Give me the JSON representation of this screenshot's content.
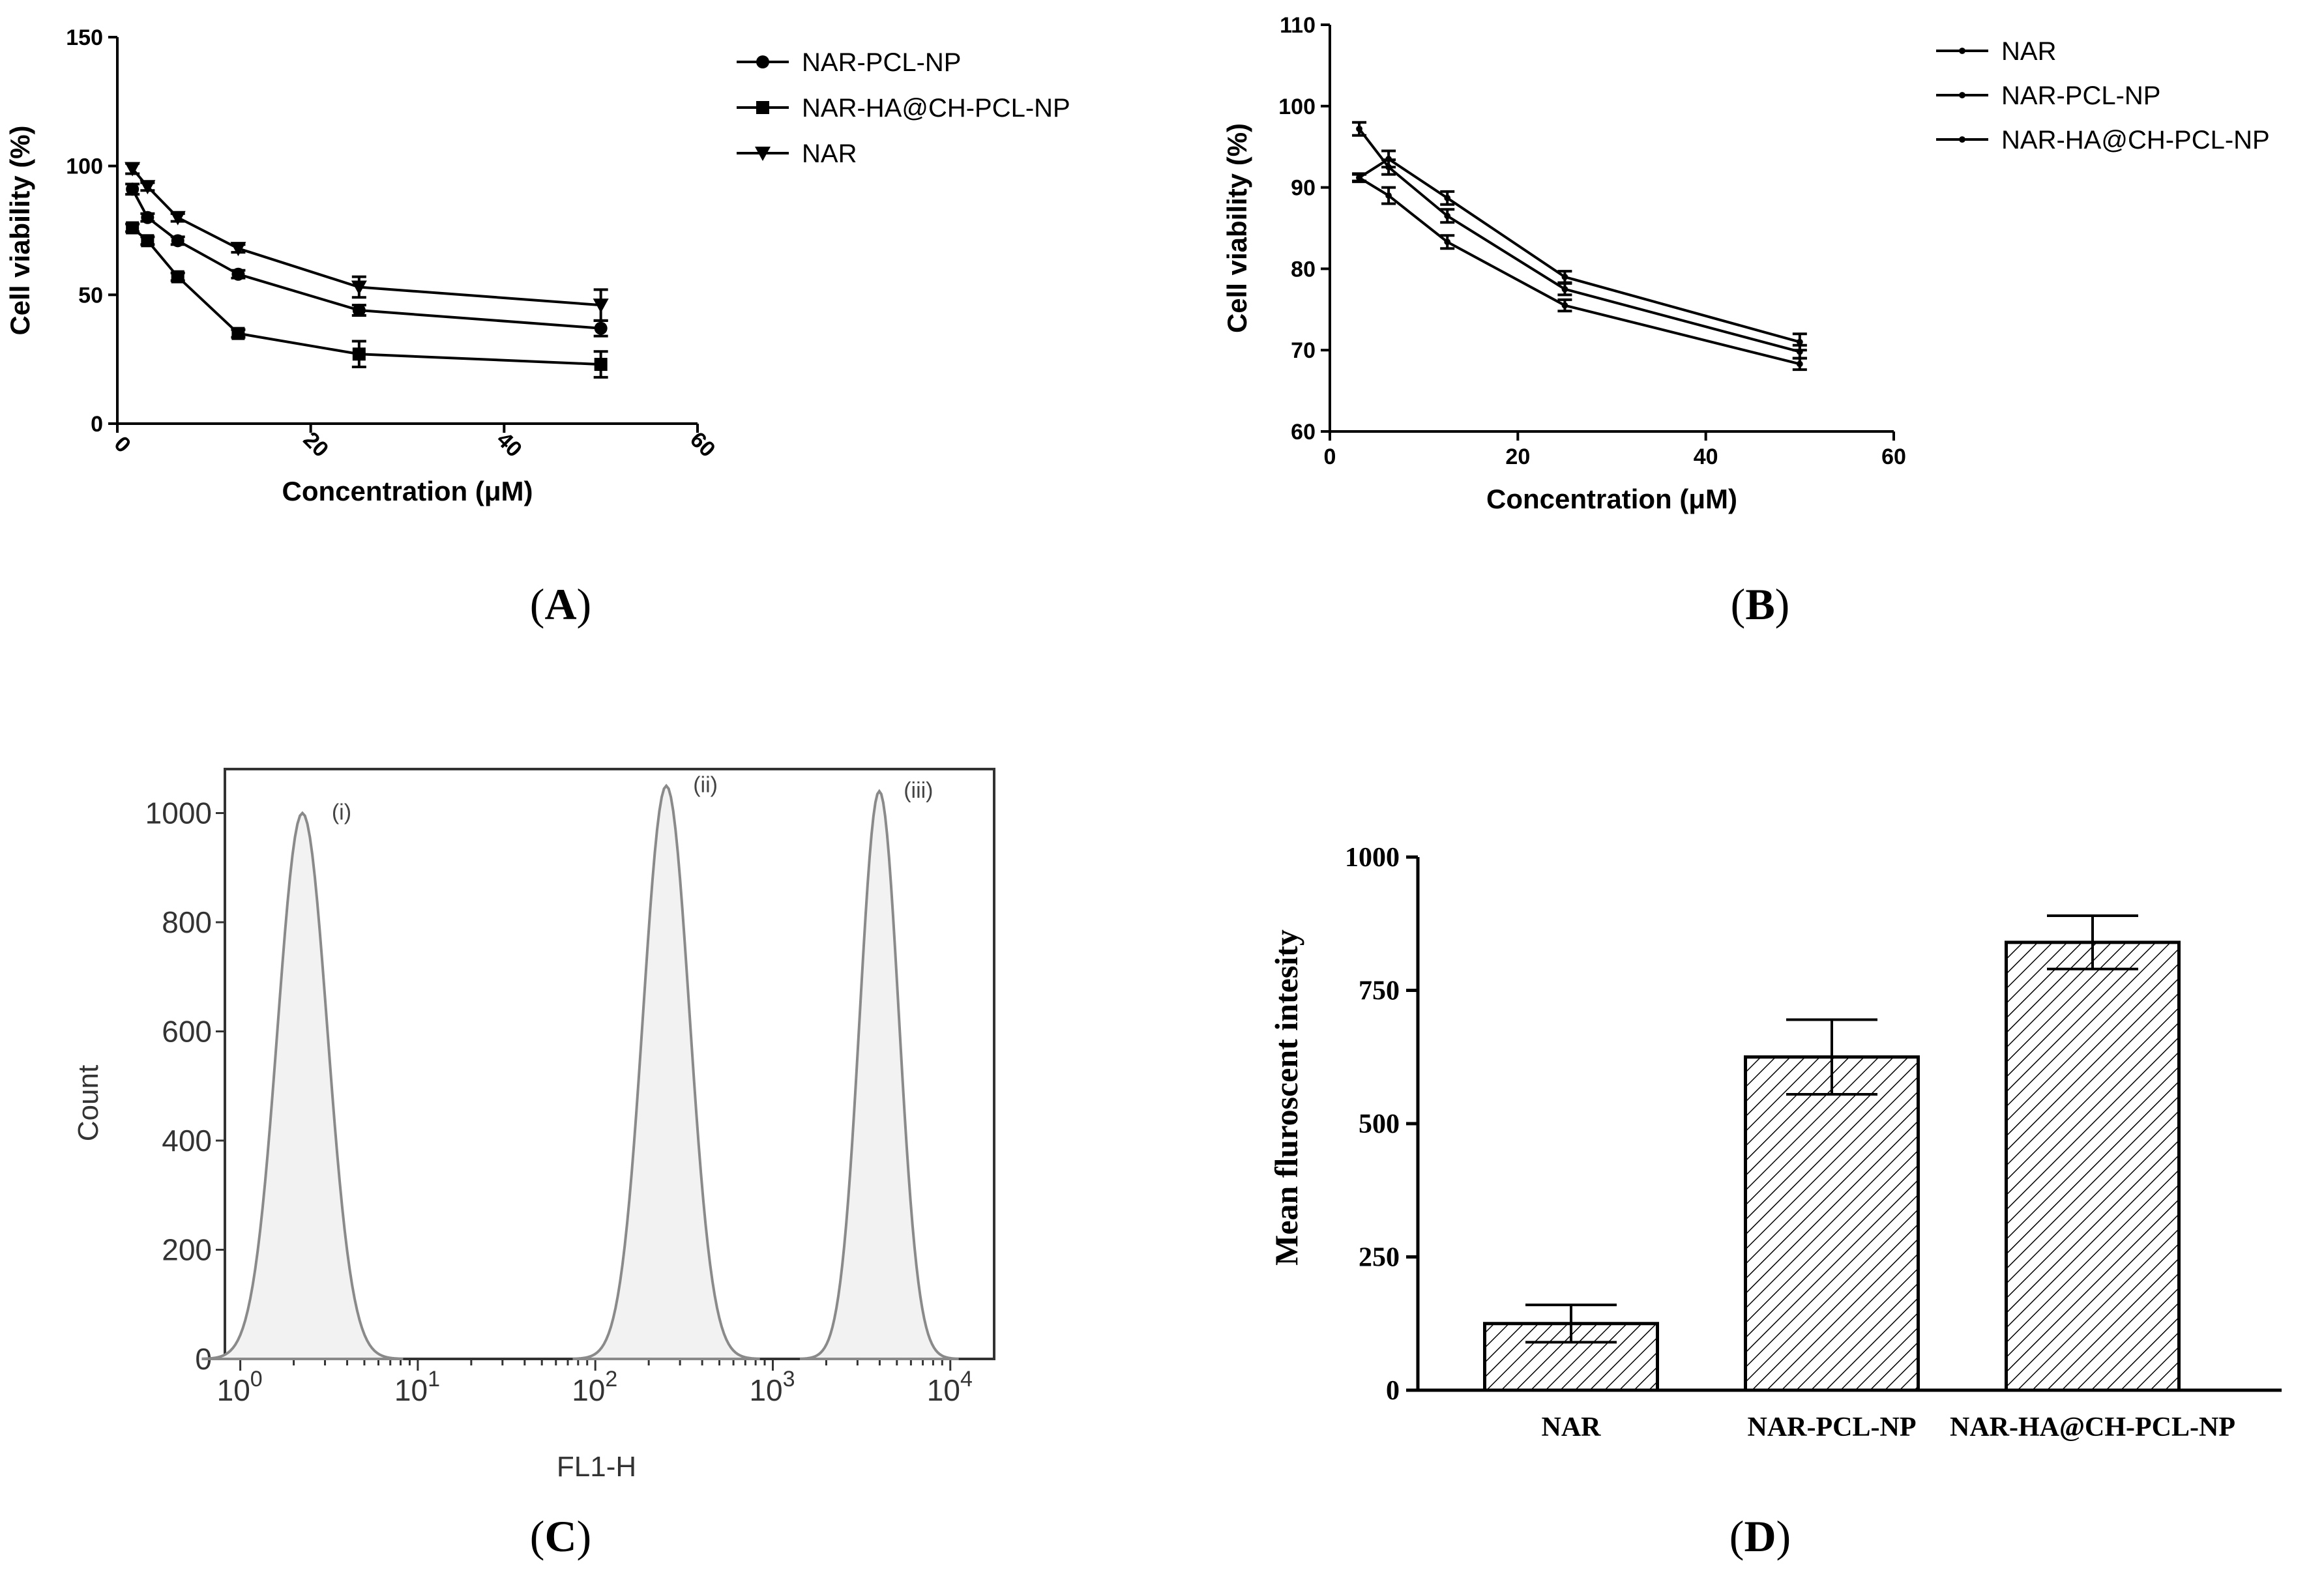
{
  "captions": {
    "a": "A",
    "b": "B",
    "c": "C",
    "d": "D"
  },
  "chart_data": [
    {
      "id": "A",
      "type": "line",
      "xlabel": "Concentration (μM)",
      "ylabel": "Cell viability (%)",
      "xlim": [
        0,
        60
      ],
      "ylim": [
        0,
        150
      ],
      "xticks": [
        0,
        20,
        40,
        60
      ],
      "yticks": [
        0,
        50,
        100,
        150
      ],
      "legend_position": "top-right",
      "series": [
        {
          "name": "NAR-PCL-NP",
          "marker": "circle",
          "x": [
            1.56,
            3.125,
            6.25,
            12.5,
            25,
            50
          ],
          "y": [
            91,
            80,
            71,
            58,
            44,
            37
          ],
          "err": [
            2,
            1.5,
            1.5,
            1.5,
            2,
            3
          ]
        },
        {
          "name": "NAR-HA@CH-PCL-NP",
          "marker": "square",
          "x": [
            1.56,
            3.125,
            6.25,
            12.5,
            25,
            50
          ],
          "y": [
            76,
            71,
            57,
            35,
            27,
            23
          ],
          "err": [
            1.5,
            1.5,
            1.5,
            1.5,
            5,
            5
          ]
        },
        {
          "name": "NAR",
          "marker": "triangle-down",
          "x": [
            1.56,
            3.125,
            6.25,
            12.5,
            25,
            50
          ],
          "y": [
            99,
            92,
            80,
            68,
            53,
            46
          ],
          "err": [
            2,
            1.5,
            1.5,
            1.5,
            4,
            6
          ]
        }
      ]
    },
    {
      "id": "B",
      "type": "line",
      "xlabel": "Concentration (μM)",
      "ylabel": "Cell viability (%)",
      "xlim": [
        0,
        60
      ],
      "ylim": [
        60,
        110
      ],
      "xticks": [
        0,
        20,
        40,
        60
      ],
      "yticks": [
        60,
        70,
        80,
        90,
        100,
        110
      ],
      "legend_position": "top-right",
      "series": [
        {
          "name": "NAR",
          "marker": "dot",
          "x": [
            3.125,
            6.25,
            12.5,
            25,
            50
          ],
          "y": [
            91.2,
            93.5,
            88.7,
            79,
            71
          ],
          "err": [
            0.5,
            1,
            0.8,
            0.7,
            1
          ]
        },
        {
          "name": "NAR-PCL-NP",
          "marker": "dot",
          "x": [
            3.125,
            6.25,
            12.5,
            25,
            50
          ],
          "y": [
            97.2,
            92.5,
            86.5,
            77.5,
            69.8
          ],
          "err": [
            0.8,
            0.9,
            0.8,
            0.7,
            0.8
          ]
        },
        {
          "name": "NAR-HA@CH-PCL-NP",
          "marker": "dot",
          "x": [
            3.125,
            6.25,
            12.5,
            25,
            50
          ],
          "y": [
            91.2,
            89,
            83.3,
            75.5,
            68.3
          ],
          "err": [
            0.4,
            1,
            0.8,
            0.7,
            0.7
          ]
        }
      ]
    },
    {
      "id": "C",
      "type": "area",
      "xlabel": "FL1-H",
      "ylabel": "Count",
      "ylim": [
        0,
        1100
      ],
      "yticks": [
        0,
        200,
        400,
        600,
        800,
        1000
      ],
      "xtick_bases": [
        "10",
        "10",
        "10",
        "10",
        "10"
      ],
      "xtick_exponents": [
        "0",
        "1",
        "2",
        "3",
        "4"
      ],
      "xscale": "log",
      "xlim_log10": [
        -0.05,
        4.1
      ],
      "series": [
        {
          "name": "(i)",
          "peak_log10": 0.35,
          "peak_count": 1000,
          "width_log10": 0.14
        },
        {
          "name": "(ii)",
          "peak_log10": 2.4,
          "peak_count": 1050,
          "width_log10": 0.13
        },
        {
          "name": "(iii)",
          "peak_log10": 3.6,
          "peak_count": 1040,
          "width_log10": 0.11
        }
      ]
    },
    {
      "id": "D",
      "type": "bar",
      "ylabel": "Mean fluroscent intesity",
      "ylim": [
        0,
        1000
      ],
      "yticks": [
        0,
        250,
        500,
        750,
        1000
      ],
      "categories": [
        "NAR",
        "NAR-PCL-NP",
        "NAR-HA@CH-PCL-NP"
      ],
      "values": [
        125,
        625,
        840
      ],
      "err": [
        35,
        70,
        50
      ]
    }
  ]
}
